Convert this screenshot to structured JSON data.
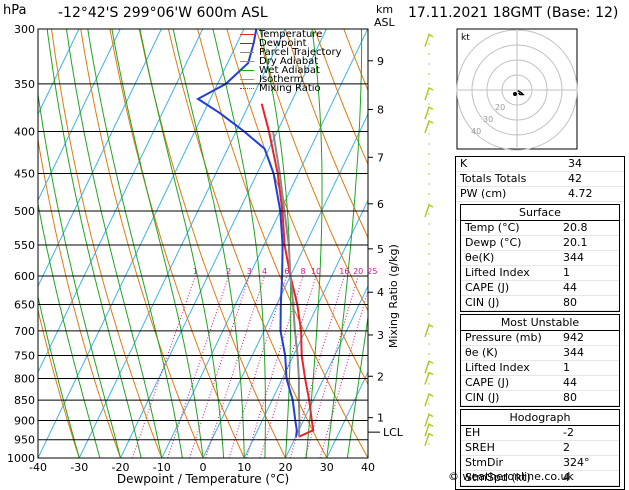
{
  "header": {
    "hpa": "hPa",
    "location": "-12°42'S  299°06'W  600m  ASL",
    "km": "km",
    "asl": "ASL",
    "datetime": "17.11.2021  18GMT  (Base: 12)"
  },
  "legend": [
    {
      "label": "Temperature",
      "color": "#e8242b",
      "style": "solid"
    },
    {
      "label": "Dewpoint",
      "color": "#1f3fd6",
      "style": "solid"
    },
    {
      "label": "Parcel Trajectory",
      "color": "#8a8a8a",
      "style": "solid"
    },
    {
      "label": "Dry Adiabat",
      "color": "#e07a10",
      "style": "solid"
    },
    {
      "label": "Wet Adiabat",
      "color": "#1fa51f",
      "style": "solid"
    },
    {
      "label": "Isotherm",
      "color": "#3db4e6",
      "style": "solid"
    },
    {
      "label": "Mixing Ratio",
      "color": "#d2149a",
      "style": "dotted"
    }
  ],
  "chart_data": {
    "type": "line",
    "title": "",
    "xlabel": "Dewpoint / Temperature (°C)",
    "ylabel": "hPa",
    "right_label": "Mixing Ratio (g/kg)",
    "xlim": [
      -40,
      40
    ],
    "x_ticks": [
      -40,
      -30,
      -20,
      -10,
      0,
      10,
      20,
      30,
      40
    ],
    "pressure_levels": [
      300,
      350,
      400,
      450,
      500,
      550,
      600,
      650,
      700,
      750,
      800,
      850,
      900,
      950,
      1000
    ],
    "km_ticks": [
      {
        "km": "1",
        "p": 893
      },
      {
        "km": "2",
        "p": 795
      },
      {
        "km": "3",
        "p": 708
      },
      {
        "km": "4",
        "p": 628
      },
      {
        "km": "5",
        "p": 556
      },
      {
        "km": "6",
        "p": 490
      },
      {
        "km": "7",
        "p": 430
      },
      {
        "km": "8",
        "p": 376
      },
      {
        "km": "9",
        "p": 328
      }
    ],
    "lcl": {
      "label": "LCL",
      "p": 930
    },
    "mixing_ratio_labels": [
      "1",
      "2",
      "3",
      "4",
      "6",
      "8",
      "10",
      "16",
      "20",
      "25"
    ],
    "series": [
      {
        "name": "Temperature",
        "color": "#e8242b",
        "points": [
          [
            942,
            20.8
          ],
          [
            925,
            23.5
          ],
          [
            900,
            22
          ],
          [
            850,
            19
          ],
          [
            800,
            15.5
          ],
          [
            750,
            12
          ],
          [
            700,
            9
          ],
          [
            650,
            5
          ],
          [
            600,
            0
          ],
          [
            550,
            -5
          ],
          [
            500,
            -9.5
          ],
          [
            450,
            -15
          ],
          [
            400,
            -22
          ],
          [
            370,
            -27
          ]
        ]
      },
      {
        "name": "Dewpoint",
        "color": "#1f3fd6",
        "points": [
          [
            942,
            20.1
          ],
          [
            925,
            19.5
          ],
          [
            900,
            18
          ],
          [
            850,
            15
          ],
          [
            800,
            11
          ],
          [
            750,
            8
          ],
          [
            700,
            4
          ],
          [
            650,
            1
          ],
          [
            600,
            -2
          ],
          [
            550,
            -5.5
          ],
          [
            500,
            -10
          ],
          [
            450,
            -16
          ],
          [
            420,
            -21
          ],
          [
            400,
            -28
          ],
          [
            380,
            -36
          ],
          [
            365,
            -43
          ],
          [
            350,
            -38
          ],
          [
            330,
            -35
          ],
          [
            312,
            -36
          ],
          [
            300,
            -37
          ]
        ]
      },
      {
        "name": "Parcel Trajectory",
        "color": "#8a8a8a",
        "points": [
          [
            942,
            20.8
          ],
          [
            930,
            20.3
          ],
          [
            900,
            19
          ],
          [
            850,
            16.5
          ],
          [
            800,
            14
          ],
          [
            750,
            11
          ],
          [
            700,
            7.5
          ],
          [
            650,
            4
          ],
          [
            600,
            0
          ],
          [
            550,
            -4
          ],
          [
            500,
            -9
          ],
          [
            450,
            -14.5
          ],
          [
            400,
            -21
          ]
        ]
      }
    ],
    "wind_barbs": [
      {
        "p": 310
      },
      {
        "p": 360
      },
      {
        "p": 380
      },
      {
        "p": 395
      },
      {
        "p": 500
      },
      {
        "p": 700
      },
      {
        "p": 775
      },
      {
        "p": 800
      },
      {
        "p": 850
      },
      {
        "p": 900
      },
      {
        "p": 925
      },
      {
        "p": 950
      }
    ],
    "hodograph": {
      "label": "kt",
      "ring_labels": [
        "40",
        "30",
        "20"
      ],
      "points": [
        [
          0.5,
          -0.5
        ],
        [
          1.5,
          -1
        ],
        [
          3,
          -2
        ],
        [
          4,
          -3
        ],
        [
          2,
          -3
        ],
        [
          1,
          -2
        ]
      ]
    }
  },
  "panel_top": [
    {
      "label": "K",
      "value": "34"
    },
    {
      "label": "Totals Totals",
      "value": "42"
    },
    {
      "label": "PW (cm)",
      "value": "4.72"
    }
  ],
  "surface": {
    "title": "Surface",
    "rows": [
      {
        "label": "Temp (°C)",
        "value": "20.8"
      },
      {
        "label": "Dewp (°C)",
        "value": "20.1"
      },
      {
        "label": "θe(K)",
        "value": "344"
      },
      {
        "label": "Lifted Index",
        "value": "1"
      },
      {
        "label": "CAPE (J)",
        "value": "44"
      },
      {
        "label": "CIN (J)",
        "value": "80"
      }
    ]
  },
  "most_unstable": {
    "title": "Most Unstable",
    "rows": [
      {
        "label": "Pressure (mb)",
        "value": "942"
      },
      {
        "label": "θe (K)",
        "value": "344"
      },
      {
        "label": "Lifted Index",
        "value": "1"
      },
      {
        "label": "CAPE (J)",
        "value": "44"
      },
      {
        "label": "CIN (J)",
        "value": "80"
      }
    ]
  },
  "hodograph_table": {
    "title": "Hodograph",
    "rows": [
      {
        "label": "EH",
        "value": "-2"
      },
      {
        "label": "SREH",
        "value": "2"
      },
      {
        "label": "StmDir",
        "value": "324°"
      },
      {
        "label": "StmSpd (kt)",
        "value": "4"
      }
    ]
  },
  "copyright": "© weatheronline.co.uk"
}
